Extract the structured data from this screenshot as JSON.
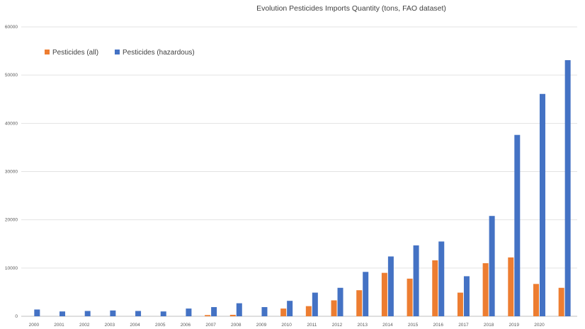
{
  "chart_data": {
    "type": "bar",
    "title": "Evolution  Pesticides Imports Quantity (tons, FAO dataset)",
    "xlabel": "",
    "ylabel": "",
    "ylim": [
      0,
      60000
    ],
    "yticks": [
      0,
      10000,
      20000,
      30000,
      40000,
      50000,
      60000
    ],
    "grid": true,
    "legend_position": "top-left",
    "categories": [
      "2000",
      "2001",
      "2002",
      "2003",
      "2004",
      "2005",
      "2006",
      "2007",
      "2008",
      "2009",
      "2010",
      "2011",
      "2012",
      "2013",
      "2014",
      "2015",
      "2016",
      "2017",
      "2018",
      "2019",
      "2020",
      ""
    ],
    "series": [
      {
        "name": "Pesticides (all)",
        "color": "#ED7D31",
        "values": [
          0,
          0,
          0,
          0,
          0,
          0,
          0,
          250,
          300,
          0,
          1600,
          2100,
          3300,
          5400,
          9000,
          7800,
          11600,
          4900,
          11000,
          12200,
          6700,
          5900
        ]
      },
      {
        "name": "Pesticides (hazardous)",
        "color": "#4472C4",
        "values": [
          1400,
          1000,
          1100,
          1200,
          1100,
          1000,
          1600,
          1900,
          2700,
          1900,
          3200,
          4900,
          5900,
          9200,
          12400,
          14700,
          15500,
          8300,
          20800,
          37600,
          46100,
          53100
        ]
      }
    ]
  }
}
